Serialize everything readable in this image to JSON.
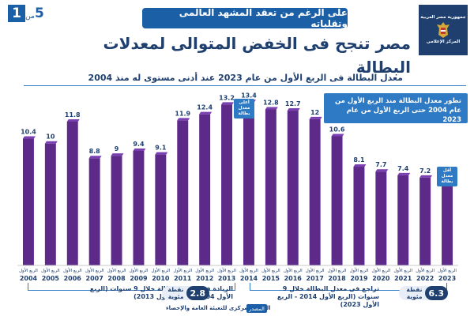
{
  "header": {
    "page_current": "1",
    "page_of": "من",
    "page_total": "5",
    "kicker": "على الرغم من تعقد المشهد العالمى وتقلباته",
    "title": "مصر تنجح فى الخفض المتوالى لمعدلات البطالة",
    "subtitle": "معدل البطالة فى الربع الأول من عام 2023 عند أدنى مستوى له منذ 2004",
    "logo_line1": "جمهورية مصر العربية",
    "logo_line2": "المركز الإعلامى"
  },
  "info_box": "تطور معدل البطالة منذ الربع الأول من عام 2004 حتى الربع الأول من عام 2023",
  "notes": {
    "max": "أعلى معدل بطالة",
    "min": "أقل معدل بطالة"
  },
  "chart_data": {
    "type": "bar",
    "title": "معدل البطالة فى الربع الأول من عام 2023 عند أدنى مستوى له منذ 2004",
    "quarter_label": "الربع الأول",
    "categories": [
      "2004",
      "2005",
      "2006",
      "2007",
      "2008",
      "2009",
      "2010",
      "2011",
      "2012",
      "2013",
      "2014",
      "2015",
      "2016",
      "2017",
      "2018",
      "2019",
      "2020",
      "2021",
      "2022",
      "2023"
    ],
    "values": [
      10.4,
      10.0,
      11.8,
      8.8,
      9.0,
      9.4,
      9.1,
      11.9,
      12.4,
      13.2,
      13.4,
      12.8,
      12.7,
      12.0,
      10.6,
      8.1,
      7.7,
      7.4,
      7.2,
      7.1
    ],
    "labels": [
      "10.4",
      "10",
      "11.8",
      "8.8",
      "9",
      "9.4",
      "9.1",
      "11.9",
      "12.4",
      "13.2",
      "13.4",
      "12.8",
      "12.7",
      "12",
      "10.6",
      "8.1",
      "7.7",
      "7.4",
      "7.2",
      "7.1"
    ],
    "ylim": [
      0,
      14
    ],
    "bar_color": "#5d2a8a",
    "bar_top_color": "#7a3fb0",
    "grid": false
  },
  "annotations": {
    "increase_text": "الزيادة فى معدل البطالة خلال 9 سنوات (الربع الأول 2004 - الربع الأول 2013)",
    "increase_value": "2.8",
    "decrease_text": "تراجع فى معدل البطالة خلال 9 سنوات (الربع الأول 2014 - الربع الأول 2023)",
    "decrease_value": "6.3",
    "unit": "نقطة مئوية"
  },
  "source": {
    "label": "المصدر",
    "text": "الجهاز المركزى للتعبئة العامة والإحصاء"
  },
  "colors": {
    "brand_blue": "#1b5fa6",
    "navy": "#1f3f6e",
    "accent_blue": "#2e7ac4"
  }
}
